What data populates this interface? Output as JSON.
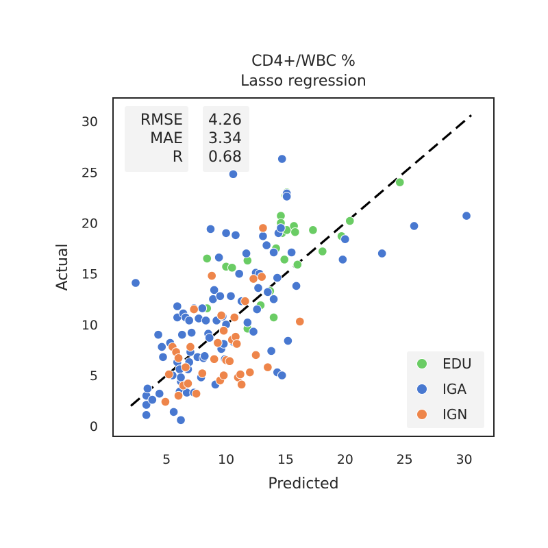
{
  "chart_data": {
    "type": "scatter",
    "title": "CD4+/WBC %",
    "subtitle": "Lasso regression",
    "xlabel": "Predicted",
    "ylabel": "Actual",
    "xlim": [
      0.5,
      32.5
    ],
    "ylim": [
      -1,
      32.3
    ],
    "xticks": [
      5,
      10,
      15,
      20,
      25,
      30
    ],
    "yticks": [
      0,
      5,
      10,
      15,
      20,
      25,
      30
    ],
    "grid": false,
    "legend_position": "lower-right",
    "identity_line": {
      "from": [
        2,
        2
      ],
      "to": [
        30.6,
        30.6
      ],
      "style": "dashed",
      "color": "#000000"
    },
    "stats": {
      "labels": [
        "RMSE",
        "MAE",
        "R"
      ],
      "values": [
        "4.26",
        "3.34",
        "0.68"
      ]
    },
    "series": [
      {
        "name": "EDU",
        "color": "#6acc64",
        "points": [
          [
            8.4,
            16.5
          ],
          [
            8.4,
            11.6
          ],
          [
            10.0,
            15.7
          ],
          [
            10.5,
            15.6
          ],
          [
            11.8,
            16.3
          ],
          [
            11.8,
            9.6
          ],
          [
            12.9,
            11.9
          ],
          [
            13.7,
            13.3
          ],
          [
            14.0,
            10.7
          ],
          [
            14.2,
            17.5
          ],
          [
            14.6,
            20.7
          ],
          [
            14.6,
            20.0
          ],
          [
            14.7,
            19.0
          ],
          [
            14.9,
            16.4
          ],
          [
            15.1,
            23.0
          ],
          [
            15.1,
            19.3
          ],
          [
            15.7,
            19.7
          ],
          [
            15.8,
            19.1
          ],
          [
            16.0,
            15.9
          ],
          [
            17.3,
            19.3
          ],
          [
            18.1,
            17.2
          ],
          [
            19.7,
            18.7
          ],
          [
            20.4,
            20.2
          ],
          [
            24.6,
            24.0
          ],
          [
            15.0,
            22.7
          ]
        ]
      },
      {
        "name": "IGA",
        "color": "#4878d0",
        "points": [
          [
            2.4,
            14.1
          ],
          [
            3.3,
            3.0
          ],
          [
            3.4,
            3.7
          ],
          [
            3.3,
            2.1
          ],
          [
            3.3,
            1.1
          ],
          [
            3.8,
            2.6
          ],
          [
            4.3,
            9.0
          ],
          [
            4.4,
            3.2
          ],
          [
            4.6,
            7.8
          ],
          [
            4.7,
            6.8
          ],
          [
            5.3,
            8.2
          ],
          [
            5.5,
            5.0
          ],
          [
            5.6,
            1.4
          ],
          [
            5.9,
            10.7
          ],
          [
            5.9,
            11.8
          ],
          [
            5.9,
            6.3
          ],
          [
            6.1,
            5.6
          ],
          [
            6.1,
            3.4
          ],
          [
            6.2,
            4.4
          ],
          [
            6.2,
            4.8
          ],
          [
            6.3,
            9.0
          ],
          [
            6.2,
            0.6
          ],
          [
            6.4,
            11.1
          ],
          [
            6.6,
            10.7
          ],
          [
            6.7,
            3.3
          ],
          [
            6.8,
            5.6
          ],
          [
            6.9,
            6.3
          ],
          [
            7.0,
            7.3
          ],
          [
            6.9,
            10.4
          ],
          [
            7.1,
            9.2
          ],
          [
            7.3,
            11.6
          ],
          [
            7.3,
            3.3
          ],
          [
            7.6,
            6.8
          ],
          [
            7.7,
            10.6
          ],
          [
            7.9,
            4.8
          ],
          [
            8.0,
            11.6
          ],
          [
            8.1,
            6.7
          ],
          [
            8.2,
            6.9
          ],
          [
            8.3,
            10.4
          ],
          [
            8.5,
            9.1
          ],
          [
            8.6,
            8.7
          ],
          [
            8.7,
            19.4
          ],
          [
            8.9,
            12.5
          ],
          [
            9.0,
            13.4
          ],
          [
            9.1,
            4.1
          ],
          [
            9.2,
            10.4
          ],
          [
            9.4,
            16.6
          ],
          [
            9.5,
            12.8
          ],
          [
            9.6,
            7.6
          ],
          [
            9.7,
            10.8
          ],
          [
            9.8,
            8.1
          ],
          [
            9.9,
            6.6
          ],
          [
            10.0,
            10.0
          ],
          [
            10.0,
            19.0
          ],
          [
            10.4,
            12.8
          ],
          [
            10.6,
            24.8
          ],
          [
            10.6,
            8.3
          ],
          [
            10.8,
            18.8
          ],
          [
            11.1,
            15.0
          ],
          [
            11.3,
            12.3
          ],
          [
            11.7,
            17.0
          ],
          [
            11.8,
            10.2
          ],
          [
            12.3,
            9.3
          ],
          [
            12.5,
            15.1
          ],
          [
            12.6,
            11.5
          ],
          [
            12.7,
            13.6
          ],
          [
            12.8,
            15.0
          ],
          [
            13.1,
            18.7
          ],
          [
            13.4,
            17.8
          ],
          [
            13.5,
            13.2
          ],
          [
            13.8,
            7.4
          ],
          [
            14.0,
            12.5
          ],
          [
            14.0,
            17.1
          ],
          [
            14.3,
            14.6
          ],
          [
            14.3,
            5.3
          ],
          [
            14.4,
            19.0
          ],
          [
            14.6,
            19.5
          ],
          [
            14.7,
            5.0
          ],
          [
            14.7,
            26.3
          ],
          [
            15.1,
            22.9
          ],
          [
            15.2,
            8.4
          ],
          [
            15.1,
            22.6
          ],
          [
            15.5,
            17.1
          ],
          [
            15.9,
            13.8
          ],
          [
            19.8,
            16.4
          ],
          [
            20.0,
            18.4
          ],
          [
            23.1,
            17.0
          ],
          [
            25.8,
            19.7
          ],
          [
            30.2,
            20.7
          ]
        ]
      },
      {
        "name": "IGN",
        "color": "#ee854a",
        "points": [
          [
            4.9,
            2.4
          ],
          [
            5.2,
            5.1
          ],
          [
            5.5,
            7.8
          ],
          [
            5.8,
            7.3
          ],
          [
            6.0,
            6.7
          ],
          [
            6.0,
            3.0
          ],
          [
            6.4,
            4.0
          ],
          [
            6.6,
            5.8
          ],
          [
            6.8,
            4.2
          ],
          [
            7.0,
            7.8
          ],
          [
            7.3,
            11.5
          ],
          [
            7.5,
            3.2
          ],
          [
            8.0,
            5.2
          ],
          [
            8.8,
            14.8
          ],
          [
            9.0,
            6.6
          ],
          [
            9.3,
            8.2
          ],
          [
            9.5,
            4.5
          ],
          [
            9.6,
            10.9
          ],
          [
            9.8,
            5.0
          ],
          [
            9.8,
            9.4
          ],
          [
            10.0,
            6.5
          ],
          [
            10.3,
            6.4
          ],
          [
            10.5,
            8.5
          ],
          [
            10.7,
            10.7
          ],
          [
            10.8,
            8.8
          ],
          [
            10.9,
            8.1
          ],
          [
            11.0,
            4.8
          ],
          [
            11.2,
            5.1
          ],
          [
            11.3,
            4.1
          ],
          [
            11.6,
            12.3
          ],
          [
            12.0,
            5.3
          ],
          [
            12.3,
            14.5
          ],
          [
            12.5,
            7.0
          ],
          [
            13.0,
            14.7
          ],
          [
            13.1,
            19.5
          ],
          [
            13.5,
            5.8
          ],
          [
            16.2,
            10.3
          ]
        ]
      }
    ]
  }
}
